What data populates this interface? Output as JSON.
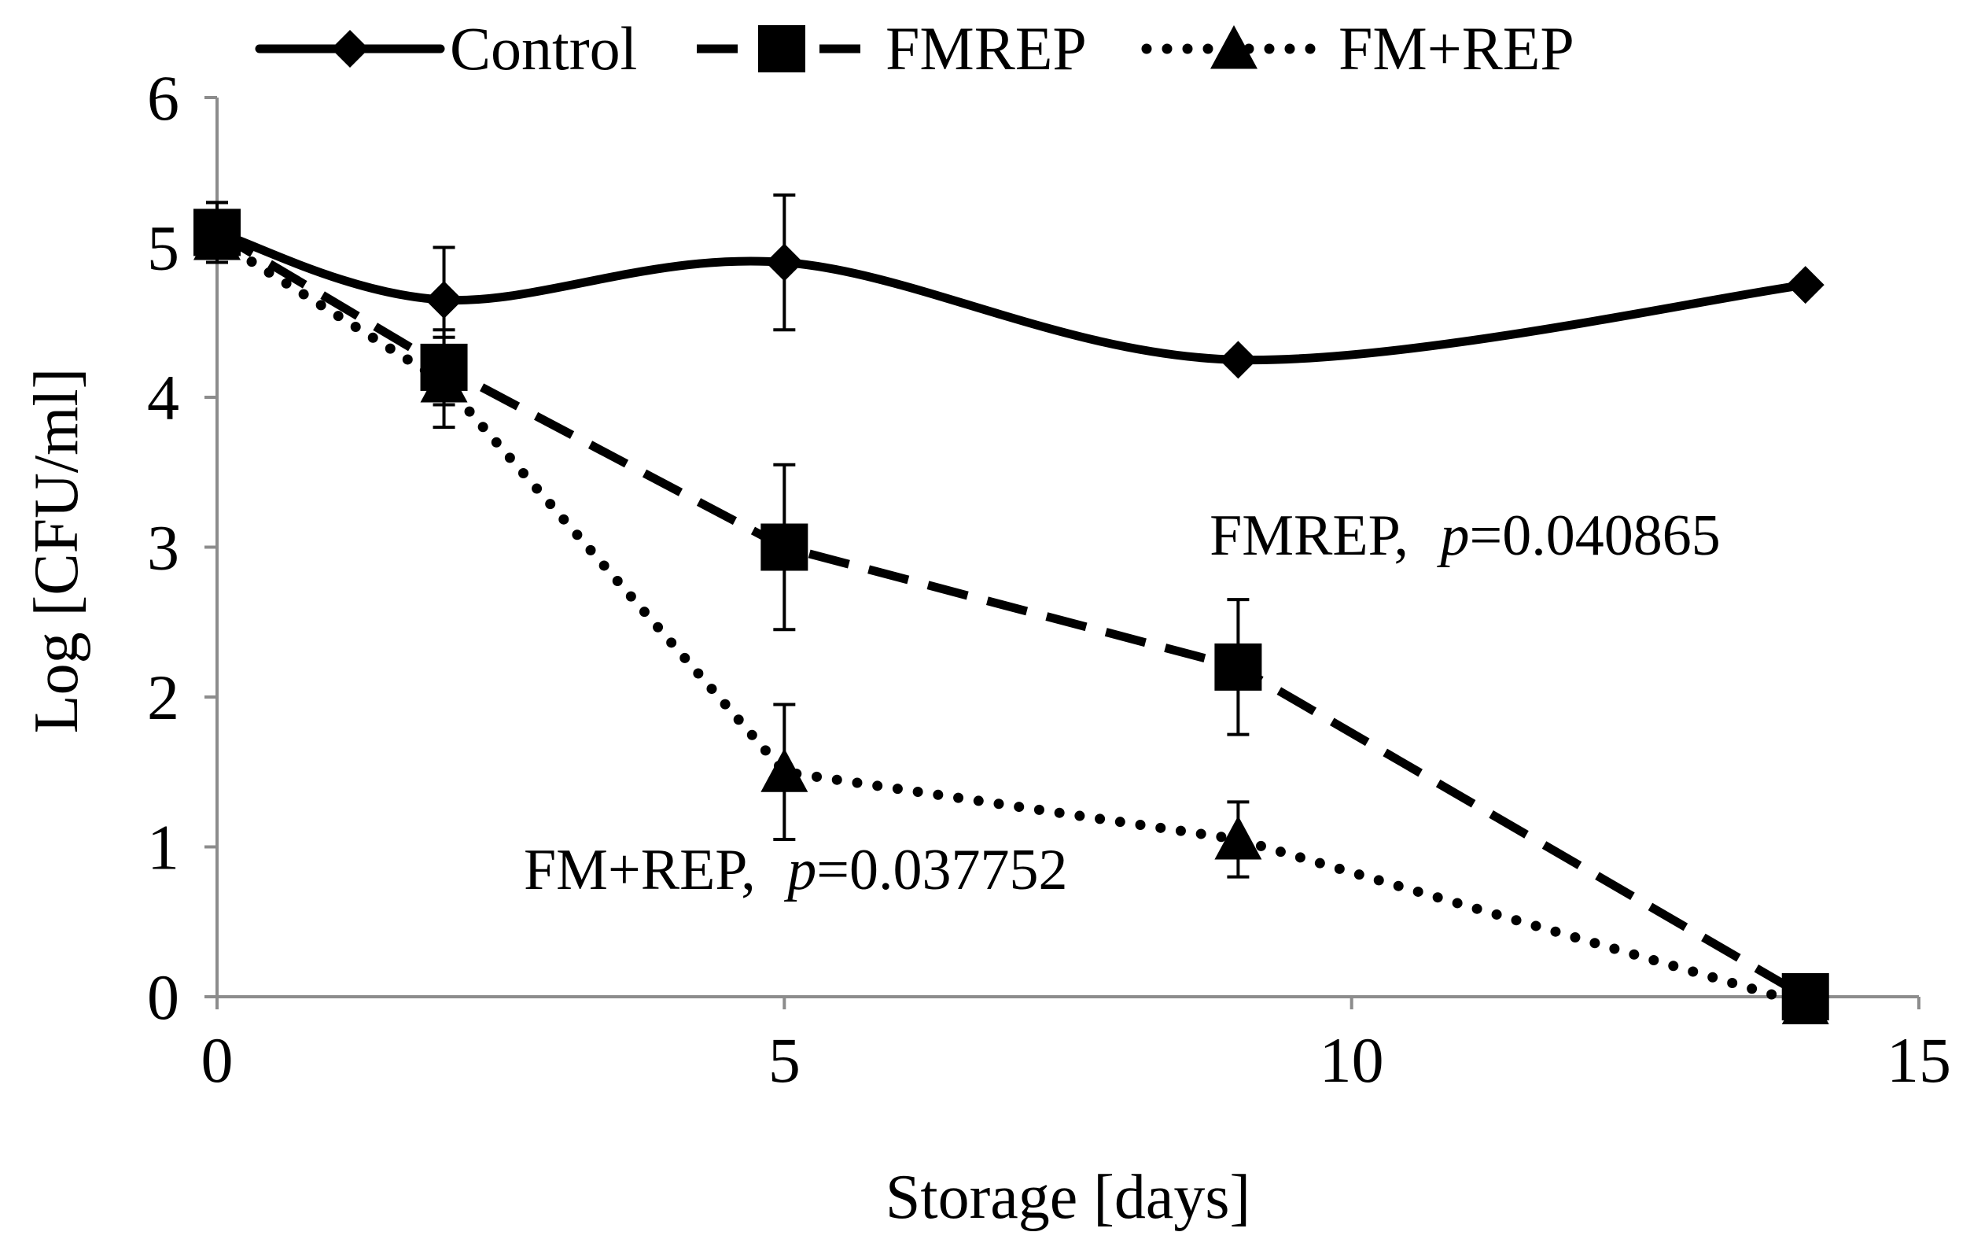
{
  "chart_data": {
    "type": "line",
    "title": "",
    "xlabel": "Storage [days]",
    "ylabel": "Log  [CFU/ml]",
    "xlim": [
      0,
      15
    ],
    "ylim": [
      0,
      6
    ],
    "xticks": [
      0,
      5,
      10,
      15
    ],
    "yticks": [
      0,
      1,
      2,
      3,
      4,
      5,
      6
    ],
    "grid": false,
    "legend_position": "top",
    "series": [
      {
        "name": "Control",
        "line_style": "solid",
        "marker": "diamond",
        "smooth": true,
        "color": "#000000",
        "x": [
          0,
          2,
          5,
          9,
          14
        ],
        "y": [
          5.1,
          4.65,
          4.9,
          4.25,
          4.75
        ],
        "error": [
          0.2,
          0.35,
          0.45,
          0,
          0
        ]
      },
      {
        "name": "FMREP",
        "line_style": "dashed",
        "marker": "square",
        "smooth": false,
        "color": "#000000",
        "x": [
          0,
          2,
          5,
          9,
          14
        ],
        "y": [
          5.1,
          4.2,
          3.0,
          2.2,
          0.0
        ],
        "error": [
          0.2,
          0.25,
          0.55,
          0.45,
          0
        ]
      },
      {
        "name": "FM+REP",
        "line_style": "dotted",
        "marker": "triangle",
        "smooth": false,
        "color": "#000000",
        "x": [
          0,
          2,
          5,
          9,
          14
        ],
        "y": [
          5.05,
          4.1,
          1.5,
          1.05,
          -0.05
        ],
        "error": [
          0.15,
          0.3,
          0.45,
          0.25,
          0
        ]
      }
    ],
    "annotations": [
      {
        "label": "FMREP,",
        "p_label": "p",
        "p_value": "=0.040865",
        "x": 11.0,
        "y": 2.95
      },
      {
        "label": "FM+REP,",
        "p_label": "p",
        "p_value": "=0.037752",
        "x": 5.1,
        "y": 0.72
      }
    ]
  }
}
